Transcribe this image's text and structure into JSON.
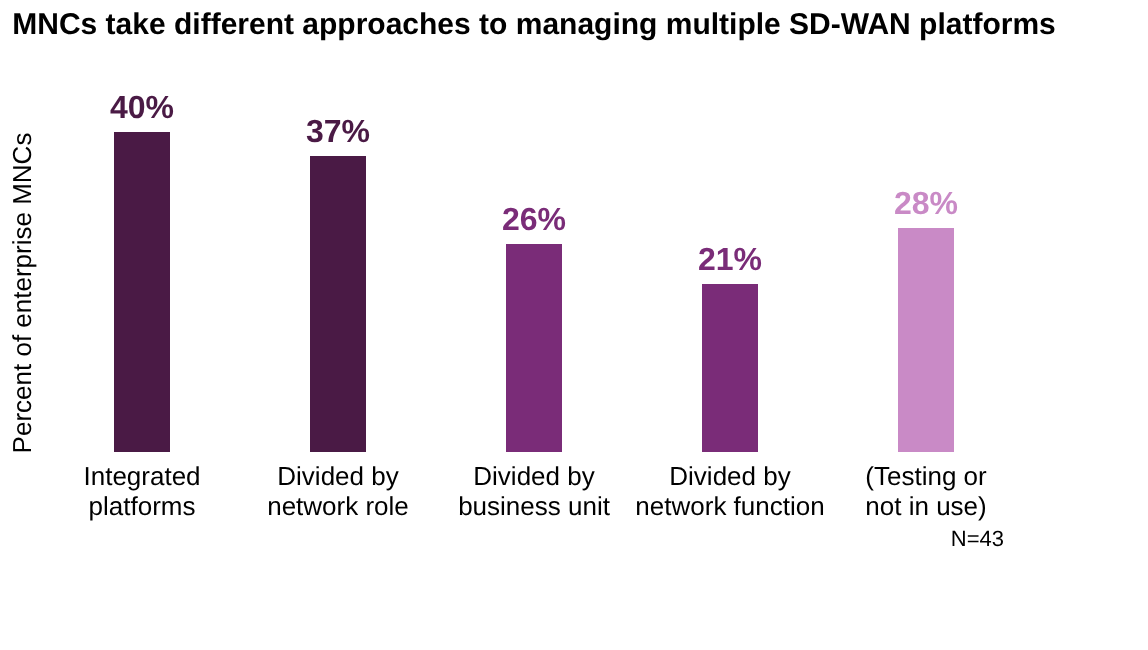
{
  "chart_data": {
    "type": "bar",
    "title": "MNCs take different approaches to managing multiple SD-WAN platforms",
    "ylabel": "Percent of enterprise MNCs",
    "categories": [
      "Integrated\nplatforms",
      "Divided by\nnetwork role",
      "Divided by\nbusiness unit",
      "Divided by\nnetwork function",
      "(Testing or\nnot in use)"
    ],
    "values": [
      40,
      37,
      26,
      21,
      28
    ],
    "value_labels": [
      "40%",
      "37%",
      "26%",
      "21%",
      "28%"
    ],
    "colors": [
      "#4a1a45",
      "#4a1a45",
      "#7a2c78",
      "#7a2c78",
      "#c98ac6"
    ],
    "grid": false,
    "annotations": [
      "N=43"
    ]
  }
}
